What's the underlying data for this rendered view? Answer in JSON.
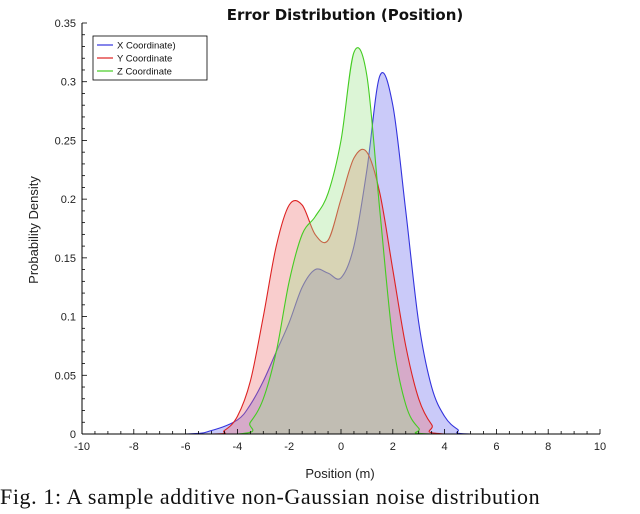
{
  "chart_data": {
    "type": "area",
    "title": "Error Distribution (Position)",
    "xlabel": "Position (m)",
    "ylabel": "Probability Density",
    "xlim": [
      -10,
      10
    ],
    "ylim": [
      0,
      0.35
    ],
    "xticks": [
      -10,
      -8,
      -6,
      -4,
      -2,
      0,
      2,
      4,
      6,
      8,
      10
    ],
    "yticks": [
      0,
      0.05,
      0.1,
      0.15,
      0.2,
      0.25,
      0.3,
      0.35
    ],
    "ytick_labels": [
      "0",
      "0.05",
      "0.1",
      "0.15",
      "0.2",
      "0.25",
      "0.3",
      "0.35"
    ],
    "grid": false,
    "legend_position": "top-left",
    "series": [
      {
        "name": "X Coordinate)",
        "color": "#3333dd",
        "fill": "#6666ee",
        "x": [
          -10,
          -6,
          -5,
          -4,
          -3.5,
          -3,
          -2.5,
          -2,
          -1.5,
          -1,
          -0.5,
          0,
          0.5,
          1,
          1.5,
          2,
          2.5,
          3,
          3.5,
          4,
          4.5,
          5,
          10
        ],
        "y": [
          0,
          0,
          0.003,
          0.012,
          0.025,
          0.045,
          0.07,
          0.095,
          0.125,
          0.14,
          0.137,
          0.133,
          0.16,
          0.225,
          0.305,
          0.28,
          0.19,
          0.095,
          0.04,
          0.015,
          0.004,
          0,
          0
        ]
      },
      {
        "name": "Y Coordinate",
        "color": "#dd2222",
        "fill": "#ee7070",
        "x": [
          -10,
          -5,
          -4.5,
          -4,
          -3.5,
          -3,
          -2.5,
          -2,
          -1.5,
          -1,
          -0.5,
          0,
          0.5,
          1,
          1.5,
          2,
          2.5,
          3,
          3.5,
          4,
          10
        ],
        "y": [
          0,
          0,
          0.003,
          0.015,
          0.045,
          0.1,
          0.16,
          0.195,
          0.195,
          0.17,
          0.165,
          0.2,
          0.235,
          0.24,
          0.205,
          0.14,
          0.075,
          0.03,
          0.008,
          0,
          0
        ]
      },
      {
        "name": "Z Coordinate",
        "color": "#44cc22",
        "fill": "#9be38a",
        "x": [
          -10,
          -4,
          -3.5,
          -3,
          -2.5,
          -2,
          -1.5,
          -1,
          -0.5,
          0,
          0.5,
          1,
          1.5,
          2,
          2.5,
          3,
          3.5,
          10
        ],
        "y": [
          0,
          0,
          0.01,
          0.03,
          0.07,
          0.13,
          0.17,
          0.185,
          0.205,
          0.25,
          0.325,
          0.305,
          0.19,
          0.08,
          0.025,
          0.005,
          0,
          0
        ]
      }
    ]
  },
  "caption": "Fig. 1: A sample additive non-Gaussian noise distribution"
}
